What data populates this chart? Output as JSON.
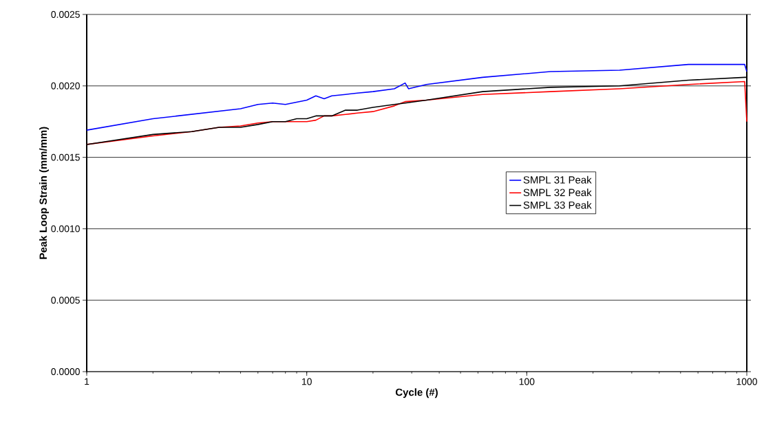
{
  "chart_data": {
    "type": "line",
    "xlabel": "Cycle (#)",
    "ylabel": "Peak Loop Strain (mm/mm)",
    "log": "x",
    "grid": "y",
    "legend": "right",
    "marker": "none",
    "line_style": "solid",
    "xlim": [
      1,
      1000
    ],
    "ylim": [
      0,
      0.0025
    ],
    "xticks": [
      1,
      10,
      100,
      1000
    ],
    "yticks": [
      {
        "value": 0,
        "label": "0.0000"
      },
      {
        "value": 0.0005,
        "label": "0.0005"
      },
      {
        "value": 0.001,
        "label": "0.0010"
      },
      {
        "value": 0.0015,
        "label": "0.0015"
      },
      {
        "value": 0.002,
        "label": "0.0020"
      },
      {
        "value": 0.0025,
        "label": "0.0025"
      }
    ],
    "series": [
      {
        "name": "SMPL 31 Peak",
        "color": "#0000ff",
        "x": [
          1,
          2,
          5,
          6,
          7,
          8,
          10,
          11,
          12,
          13,
          15,
          17,
          20,
          25,
          28,
          29,
          35,
          63,
          128,
          264,
          543,
          978,
          1000
        ],
        "values": [
          0.00169,
          0.00177,
          0.00184,
          0.00187,
          0.00188,
          0.00187,
          0.0019,
          0.00193,
          0.00191,
          0.00193,
          0.00194,
          0.00195,
          0.00196,
          0.00198,
          0.00202,
          0.00198,
          0.00201,
          0.00206,
          0.0021,
          0.00211,
          0.00215,
          0.00215,
          0.0021
        ]
      },
      {
        "name": "SMPL 32 Peak",
        "color": "#ff0000",
        "x": [
          1,
          2,
          3,
          4,
          5,
          6,
          7,
          8,
          9,
          10,
          11,
          12,
          13,
          15,
          17,
          20,
          25,
          28,
          35,
          63,
          128,
          264,
          543,
          978,
          1000
        ],
        "values": [
          0.00159,
          0.00165,
          0.00168,
          0.00171,
          0.00172,
          0.00174,
          0.00175,
          0.00175,
          0.00175,
          0.00175,
          0.00176,
          0.00179,
          0.00179,
          0.0018,
          0.00181,
          0.00182,
          0.00186,
          0.00189,
          0.0019,
          0.00194,
          0.00196,
          0.00198,
          0.00201,
          0.00203,
          0.00175
        ]
      },
      {
        "name": "SMPL 33 Peak",
        "color": "#000000",
        "x": [
          1,
          2,
          3,
          4,
          5,
          6,
          7,
          8,
          9,
          10,
          11,
          12,
          13,
          15,
          17,
          20,
          25,
          28,
          35,
          63,
          128,
          264,
          543,
          978,
          1000
        ],
        "values": [
          0.00159,
          0.00166,
          0.00168,
          0.00171,
          0.00171,
          0.00173,
          0.00175,
          0.00175,
          0.00177,
          0.00177,
          0.00179,
          0.00179,
          0.00179,
          0.00183,
          0.00183,
          0.00185,
          0.00187,
          0.00188,
          0.0019,
          0.00196,
          0.00199,
          0.002,
          0.00204,
          0.00206,
          0.00206
        ]
      }
    ]
  }
}
